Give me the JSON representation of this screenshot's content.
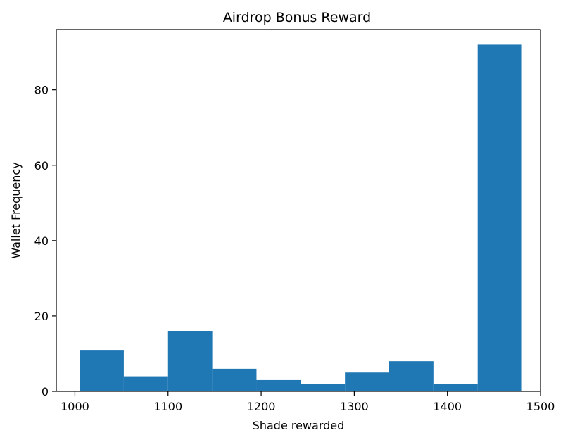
{
  "chart_data": {
    "type": "bar",
    "title": "Airdrop Bonus Reward",
    "xlabel": "Shade rewarded",
    "ylabel": "Wallet Frequency",
    "xlim": [
      980,
      1500
    ],
    "ylim": [
      0,
      96
    ],
    "xticks": [
      1000,
      1100,
      1200,
      1300,
      1400,
      1500
    ],
    "yticks": [
      0,
      20,
      40,
      60,
      80
    ],
    "bar_color": "#1f77b4",
    "bins": [
      {
        "x0": 1005,
        "x1": 1052.5,
        "value": 11
      },
      {
        "x0": 1052.5,
        "x1": 1100,
        "value": 4
      },
      {
        "x0": 1100,
        "x1": 1147.5,
        "value": 16
      },
      {
        "x0": 1147.5,
        "x1": 1195,
        "value": 6
      },
      {
        "x0": 1195,
        "x1": 1242.5,
        "value": 3
      },
      {
        "x0": 1242.5,
        "x1": 1290,
        "value": 2
      },
      {
        "x0": 1290,
        "x1": 1337.5,
        "value": 5
      },
      {
        "x0": 1337.5,
        "x1": 1385,
        "value": 8
      },
      {
        "x0": 1385,
        "x1": 1432.5,
        "value": 2
      },
      {
        "x0": 1432.5,
        "x1": 1480,
        "value": 92
      }
    ]
  }
}
